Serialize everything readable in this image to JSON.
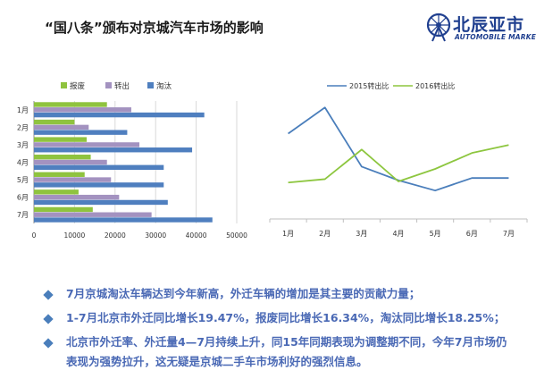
{
  "title": "“国八条”颁布对京城汽车市场的影响",
  "logo": {
    "cn": "北辰亚市",
    "en": "AUTOMOBILE MARKET",
    "icon": "ferris-wheel-logo-icon",
    "color": "#1f3f8f"
  },
  "chart_data": [
    {
      "type": "bar",
      "orientation": "horizontal",
      "categories": [
        "1月",
        "2月",
        "3月",
        "4月",
        "5月",
        "6月",
        "7月"
      ],
      "series": [
        {
          "name": "报废",
          "color": "#8fc33f",
          "values": [
            18000,
            10000,
            13000,
            14000,
            12500,
            11000,
            14500
          ]
        },
        {
          "name": "转出",
          "color": "#a392c0",
          "values": [
            24000,
            13500,
            26000,
            18000,
            19000,
            21000,
            29000
          ]
        },
        {
          "name": "淘汰",
          "color": "#4f7fbf",
          "values": [
            42000,
            23000,
            39000,
            32000,
            32000,
            33000,
            44000
          ]
        }
      ],
      "xlim": [
        0,
        50000
      ],
      "xticks": [
        "0",
        "10000",
        "20000",
        "30000",
        "40000",
        "50000"
      ],
      "grid": true,
      "legend": "top"
    },
    {
      "type": "line",
      "categories": [
        "1月",
        "2月",
        "3月",
        "4月",
        "5月",
        "6月",
        "7月"
      ],
      "series": [
        {
          "name": "2015转出比",
          "color": "#4a7ebb",
          "values": [
            0.55,
            0.78,
            0.26,
            0.14,
            0.05,
            0.16,
            0.16
          ]
        },
        {
          "name": "2016转出比",
          "color": "#8dc63f",
          "values": [
            0.12,
            0.15,
            0.41,
            0.13,
            0.24,
            0.38,
            0.45
          ]
        }
      ],
      "ylim": [
        -0.2,
        0.9
      ],
      "grid": false,
      "legend": "top"
    }
  ],
  "bullets": [
    "7月京城淘汰车辆达到今年新高，外迁车辆的增加是其主要的贡献力量；",
    "1-7月北京市外迁同比增长19.47%，报废同比增长16.34%，淘汰同比增长18.25%；",
    "北京市外迁率、外迁量4—7月持续上升，同15年同期表现为调整期不同，今年7月市场仍表现为强势拉升，这无疑是京城二手车市场利好的强烈信息。"
  ],
  "colors": {
    "bullet_text": "#4a69b5",
    "bullet_marker": "#4a7ebb"
  }
}
